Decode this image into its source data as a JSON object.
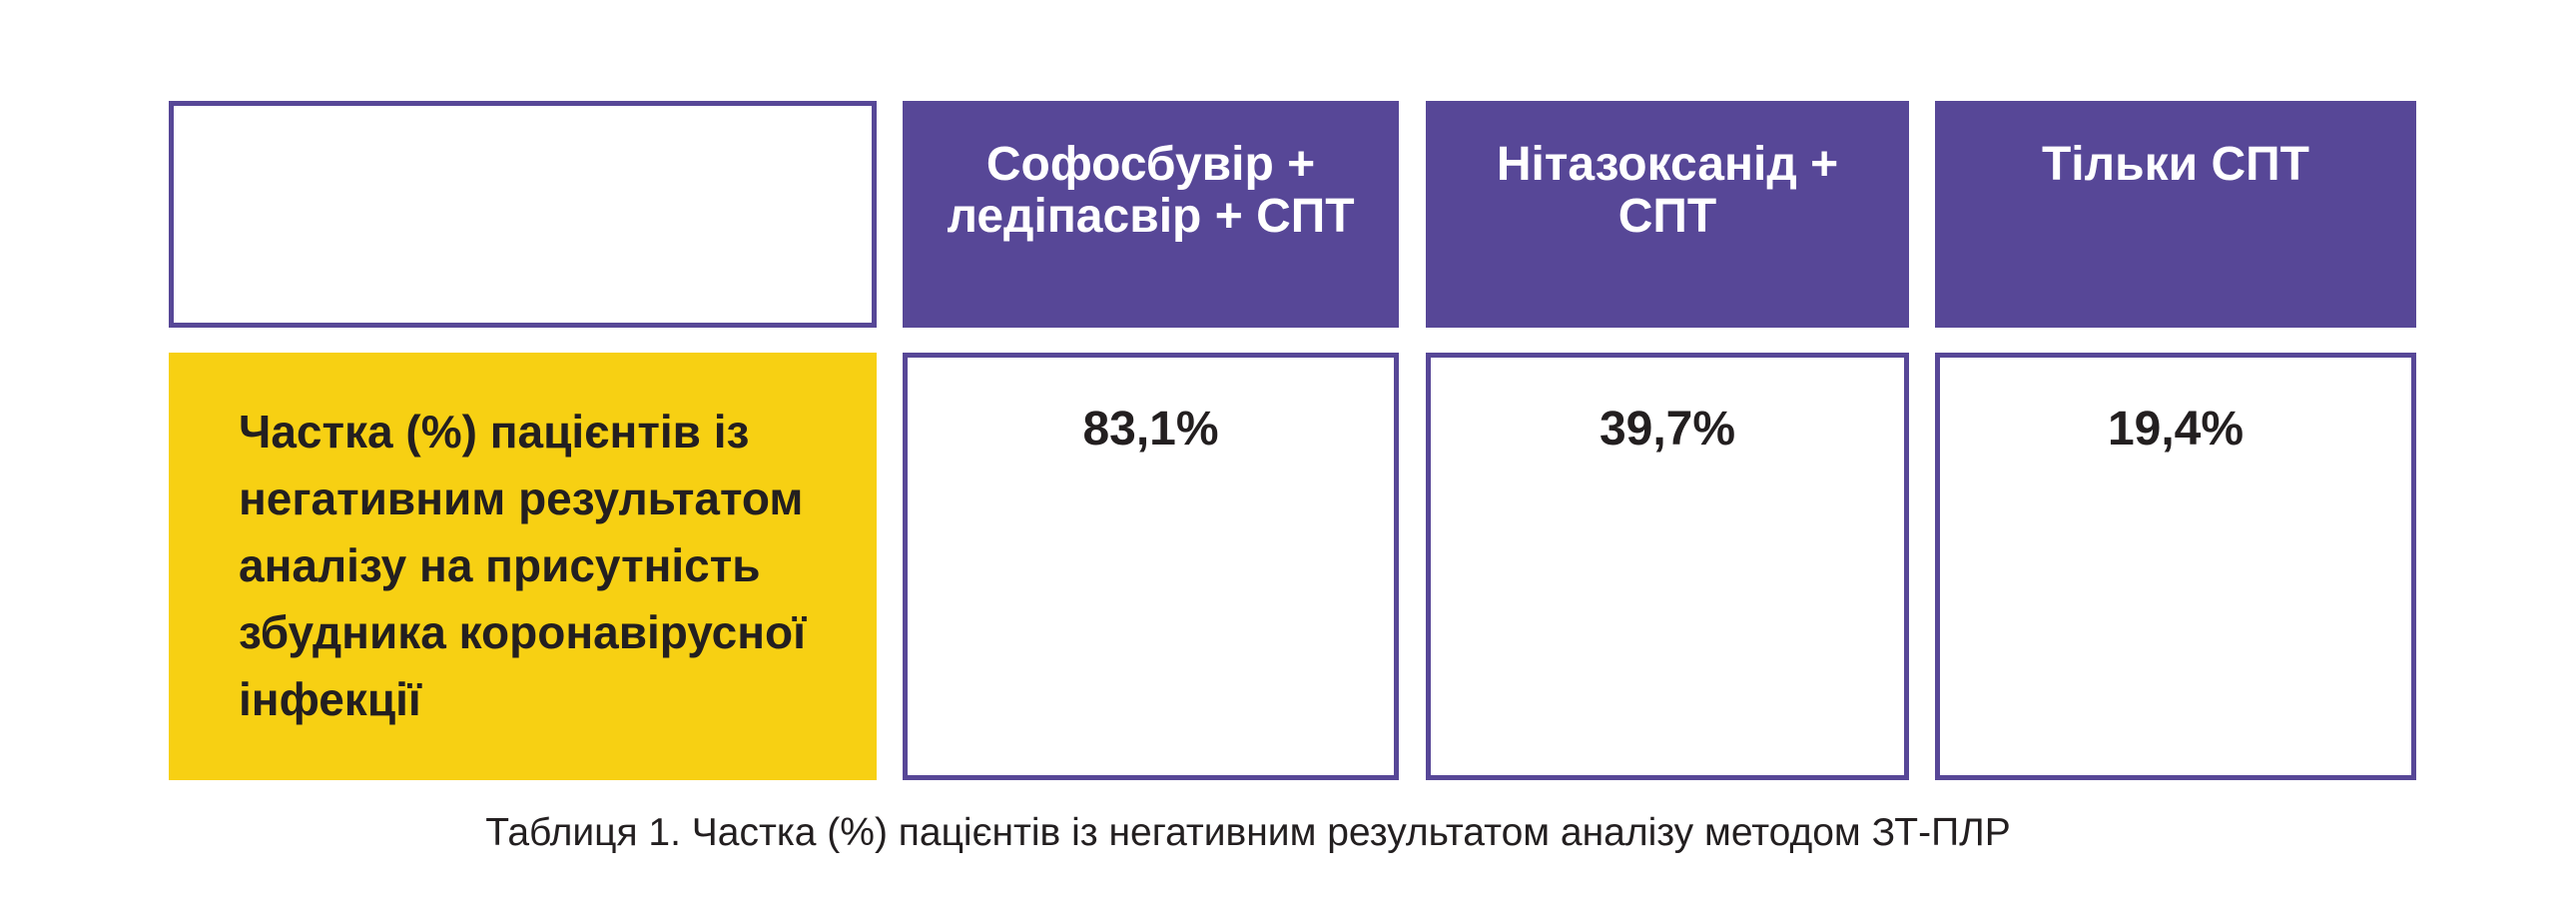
{
  "colors": {
    "accent_purple": "#574797",
    "accent_yellow": "#f7d013",
    "text_dark": "#231f20"
  },
  "table": {
    "headers": [
      "Софосбувір + ледіпасвір + СПТ",
      "Нітазоксанід + СПТ",
      "Тільки СПТ"
    ],
    "row_label": "Частка (%) пацієнтів із\nнегативним результатом\nаналізу на присутність\nзбудника коронавірусної\n інфекції",
    "values": [
      "83,1%",
      "39,7%",
      "19,4%"
    ]
  },
  "caption": "Таблиця 1. Частка (%) пацієнтів із негативним результатом аналізу методом ЗТ-ПЛР"
}
